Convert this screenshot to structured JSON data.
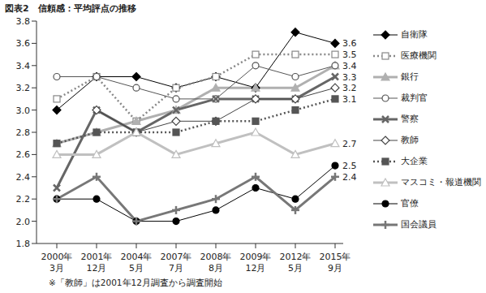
{
  "chart_data": {
    "type": "line",
    "title": "図表2　信頼感：平均評点の推移",
    "note": "※「教師」は2001年12月調査から調査開始",
    "categories": [
      "2000年3月",
      "2001年12月",
      "2004年5月",
      "2007年7月",
      "2008年8月",
      "2009年12月",
      "2012年5月",
      "2015年9月"
    ],
    "ylim": [
      1.8,
      3.8
    ],
    "yticks": [
      1.8,
      {
        "value": 2,
        "label": "2.0"
      },
      2.2,
      2.4,
      2.6,
      2.8,
      {
        "value": 3,
        "label": "3.0"
      },
      3.2,
      3.4,
      3.6,
      3.8
    ],
    "grid": false,
    "legend": "right",
    "series": [
      {
        "name": "自衛隊",
        "color": "#000000",
        "marker": "diamond",
        "line_style": "solid",
        "values": [
          3.0,
          3.3,
          3.3,
          3.2,
          3.3,
          3.2,
          3.7,
          3.6
        ],
        "value_labels": [
          null,
          null,
          null,
          null,
          null,
          null,
          null,
          "3.6"
        ]
      },
      {
        "name": "医療機関",
        "color": "#888888",
        "marker": "square-open",
        "line_style": "dotted",
        "values": [
          3.1,
          3.3,
          2.9,
          3.2,
          3.3,
          3.5,
          3.5,
          3.5
        ],
        "value_labels": [
          null,
          null,
          null,
          null,
          null,
          null,
          null,
          "3.5"
        ]
      },
      {
        "name": "銀行",
        "color": "#b0b0b0",
        "marker": "triangle",
        "line_style": "thick",
        "values": [
          2.7,
          2.8,
          2.9,
          3.0,
          3.2,
          3.2,
          3.2,
          3.4
        ],
        "value_labels": [
          null,
          null,
          null,
          null,
          null,
          null,
          null,
          "3.4"
        ]
      },
      {
        "name": "裁判官",
        "color": "#555555",
        "marker": "circle-open",
        "line_style": "solid",
        "values": [
          3.3,
          3.3,
          3.2,
          3.1,
          3.1,
          3.4,
          3.3,
          3.4
        ]
      },
      {
        "name": "警察",
        "color": "#666666",
        "marker": "x",
        "line_style": "thick",
        "values": [
          2.3,
          3.0,
          2.8,
          3.0,
          3.1,
          3.1,
          3.1,
          3.3
        ],
        "value_labels": [
          null,
          null,
          null,
          null,
          null,
          null,
          null,
          "3.3"
        ]
      },
      {
        "name": "教師",
        "color": "#444444",
        "marker": "diamond-open",
        "line_style": "solid",
        "values": [
          null,
          3.0,
          2.8,
          2.9,
          2.9,
          3.1,
          3.1,
          3.2
        ],
        "value_labels": [
          null,
          null,
          null,
          null,
          null,
          null,
          null,
          "3.2"
        ]
      },
      {
        "name": "大企業",
        "color": "#555555",
        "marker": "square",
        "line_style": "dotted",
        "values": [
          2.7,
          2.8,
          2.8,
          2.8,
          2.9,
          2.9,
          3.0,
          3.1
        ],
        "value_labels": [
          null,
          null,
          null,
          null,
          null,
          null,
          null,
          "3.1"
        ]
      },
      {
        "name": "マスコミ・報道機関",
        "color": "#c0c0c0",
        "marker": "triangle-open",
        "line_style": "thick",
        "values": [
          2.6,
          2.6,
          2.8,
          2.6,
          2.7,
          2.8,
          2.6,
          2.7
        ],
        "value_labels": [
          null,
          null,
          null,
          null,
          null,
          null,
          null,
          "2.7"
        ]
      },
      {
        "name": "官僚",
        "color": "#000000",
        "marker": "circle",
        "line_style": "solid",
        "values": [
          2.2,
          2.2,
          2.0,
          2.0,
          2.1,
          2.3,
          2.2,
          2.5
        ],
        "value_labels": [
          null,
          null,
          null,
          null,
          null,
          null,
          null,
          "2.5"
        ]
      },
      {
        "name": "国会議員",
        "color": "#777777",
        "marker": "plus",
        "line_style": "thick",
        "values": [
          2.2,
          2.4,
          2.0,
          2.1,
          2.2,
          2.4,
          2.1,
          2.4
        ],
        "value_labels": [
          null,
          null,
          null,
          null,
          null,
          null,
          null,
          "2.4"
        ]
      }
    ]
  }
}
